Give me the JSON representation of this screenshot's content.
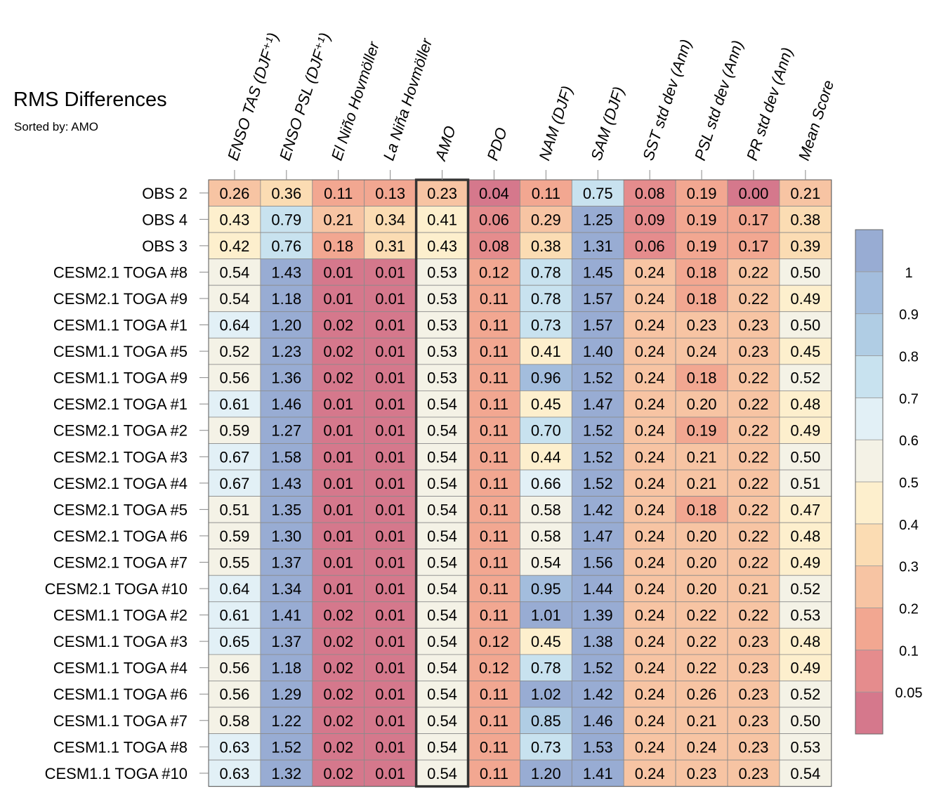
{
  "chart_data": {
    "type": "heatmap",
    "title": "RMS Differences",
    "subtitle": "Sorted by: AMO",
    "columns": [
      "ENSO TAS (DJF⁺¹)",
      "ENSO PSL (DJF⁺¹)",
      "El Niño Hovmöller",
      "La Niña Hovmöller",
      "AMO",
      "PDO",
      "NAM (DJF)",
      "SAM (DJF)",
      "SST std dev (Ann)",
      "PSL std dev (Ann)",
      "PR std dev (Ann)",
      "Mean Score"
    ],
    "highlighted_column": "AMO",
    "rows": [
      "OBS 2",
      "OBS 4",
      "OBS 3",
      "CESM2.1 TOGA #8",
      "CESM2.1 TOGA #9",
      "CESM1.1 TOGA #1",
      "CESM1.1 TOGA #5",
      "CESM1.1 TOGA #9",
      "CESM2.1 TOGA #1",
      "CESM2.1 TOGA #2",
      "CESM2.1 TOGA #3",
      "CESM2.1 TOGA #4",
      "CESM2.1 TOGA #5",
      "CESM2.1 TOGA #6",
      "CESM2.1 TOGA #7",
      "CESM2.1 TOGA #10",
      "CESM1.1 TOGA #2",
      "CESM1.1 TOGA #3",
      "CESM1.1 TOGA #4",
      "CESM1.1 TOGA #6",
      "CESM1.1 TOGA #7",
      "CESM1.1 TOGA #8",
      "CESM1.1 TOGA #10"
    ],
    "values": [
      [
        "0.26",
        "0.36",
        "0.11",
        "0.13",
        "0.23",
        "0.04",
        "0.11",
        "0.75",
        "0.08",
        "0.19",
        "0.00",
        "0.21"
      ],
      [
        "0.43",
        "0.79",
        "0.21",
        "0.34",
        "0.41",
        "0.06",
        "0.29",
        "1.25",
        "0.09",
        "0.19",
        "0.17",
        "0.38"
      ],
      [
        "0.42",
        "0.76",
        "0.18",
        "0.31",
        "0.43",
        "0.08",
        "0.38",
        "1.31",
        "0.06",
        "0.19",
        "0.17",
        "0.39"
      ],
      [
        "0.54",
        "1.43",
        "0.01",
        "0.01",
        "0.53",
        "0.12",
        "0.78",
        "1.45",
        "0.24",
        "0.18",
        "0.22",
        "0.50"
      ],
      [
        "0.54",
        "1.18",
        "0.01",
        "0.01",
        "0.53",
        "0.11",
        "0.78",
        "1.57",
        "0.24",
        "0.18",
        "0.22",
        "0.49"
      ],
      [
        "0.64",
        "1.20",
        "0.02",
        "0.01",
        "0.53",
        "0.11",
        "0.73",
        "1.57",
        "0.24",
        "0.23",
        "0.23",
        "0.50"
      ],
      [
        "0.52",
        "1.23",
        "0.02",
        "0.01",
        "0.53",
        "0.11",
        "0.41",
        "1.40",
        "0.24",
        "0.24",
        "0.23",
        "0.45"
      ],
      [
        "0.56",
        "1.36",
        "0.02",
        "0.01",
        "0.53",
        "0.11",
        "0.96",
        "1.52",
        "0.24",
        "0.18",
        "0.22",
        "0.52"
      ],
      [
        "0.61",
        "1.46",
        "0.01",
        "0.01",
        "0.54",
        "0.11",
        "0.45",
        "1.47",
        "0.24",
        "0.20",
        "0.22",
        "0.48"
      ],
      [
        "0.59",
        "1.27",
        "0.01",
        "0.01",
        "0.54",
        "0.11",
        "0.70",
        "1.52",
        "0.24",
        "0.19",
        "0.22",
        "0.49"
      ],
      [
        "0.67",
        "1.58",
        "0.01",
        "0.01",
        "0.54",
        "0.11",
        "0.44",
        "1.52",
        "0.24",
        "0.21",
        "0.22",
        "0.50"
      ],
      [
        "0.67",
        "1.43",
        "0.01",
        "0.01",
        "0.54",
        "0.11",
        "0.66",
        "1.52",
        "0.24",
        "0.21",
        "0.22",
        "0.51"
      ],
      [
        "0.51",
        "1.35",
        "0.01",
        "0.01",
        "0.54",
        "0.11",
        "0.58",
        "1.42",
        "0.24",
        "0.18",
        "0.22",
        "0.47"
      ],
      [
        "0.59",
        "1.30",
        "0.01",
        "0.01",
        "0.54",
        "0.11",
        "0.58",
        "1.47",
        "0.24",
        "0.20",
        "0.22",
        "0.48"
      ],
      [
        "0.55",
        "1.37",
        "0.01",
        "0.01",
        "0.54",
        "0.11",
        "0.54",
        "1.56",
        "0.24",
        "0.20",
        "0.22",
        "0.49"
      ],
      [
        "0.64",
        "1.34",
        "0.01",
        "0.01",
        "0.54",
        "0.11",
        "0.95",
        "1.44",
        "0.24",
        "0.20",
        "0.21",
        "0.52"
      ],
      [
        "0.61",
        "1.41",
        "0.02",
        "0.01",
        "0.54",
        "0.11",
        "1.01",
        "1.39",
        "0.24",
        "0.22",
        "0.22",
        "0.53"
      ],
      [
        "0.65",
        "1.37",
        "0.02",
        "0.01",
        "0.54",
        "0.12",
        "0.45",
        "1.38",
        "0.24",
        "0.22",
        "0.23",
        "0.48"
      ],
      [
        "0.56",
        "1.18",
        "0.02",
        "0.01",
        "0.54",
        "0.12",
        "0.78",
        "1.52",
        "0.24",
        "0.22",
        "0.23",
        "0.49"
      ],
      [
        "0.56",
        "1.29",
        "0.02",
        "0.01",
        "0.54",
        "0.11",
        "1.02",
        "1.42",
        "0.24",
        "0.26",
        "0.23",
        "0.52"
      ],
      [
        "0.58",
        "1.22",
        "0.02",
        "0.01",
        "0.54",
        "0.11",
        "0.85",
        "1.46",
        "0.24",
        "0.21",
        "0.23",
        "0.50"
      ],
      [
        "0.63",
        "1.52",
        "0.02",
        "0.01",
        "0.54",
        "0.11",
        "0.73",
        "1.53",
        "0.24",
        "0.24",
        "0.23",
        "0.53"
      ],
      [
        "0.63",
        "1.32",
        "0.02",
        "0.01",
        "0.54",
        "0.11",
        "1.20",
        "1.41",
        "0.24",
        "0.23",
        "0.23",
        "0.54"
      ]
    ],
    "colorbar": {
      "thresholds": [
        0.05,
        0.1,
        0.2,
        0.3,
        0.4,
        0.5,
        0.6,
        0.7,
        0.8,
        0.9,
        1.0
      ],
      "labels": [
        "0.05",
        "0.1",
        "0.2",
        "0.3",
        "0.4",
        "0.5",
        "0.6",
        "0.7",
        "0.8",
        "0.9",
        "1"
      ],
      "colors": [
        "#d5788c",
        "#e58c8d",
        "#f2a791",
        "#f7c4a3",
        "#fbdcb3",
        "#fdefcd",
        "#f4f2e6",
        "#e2f0f6",
        "#c8e2ef",
        "#b0cde4",
        "#a3bddd",
        "#98acd3"
      ]
    }
  }
}
